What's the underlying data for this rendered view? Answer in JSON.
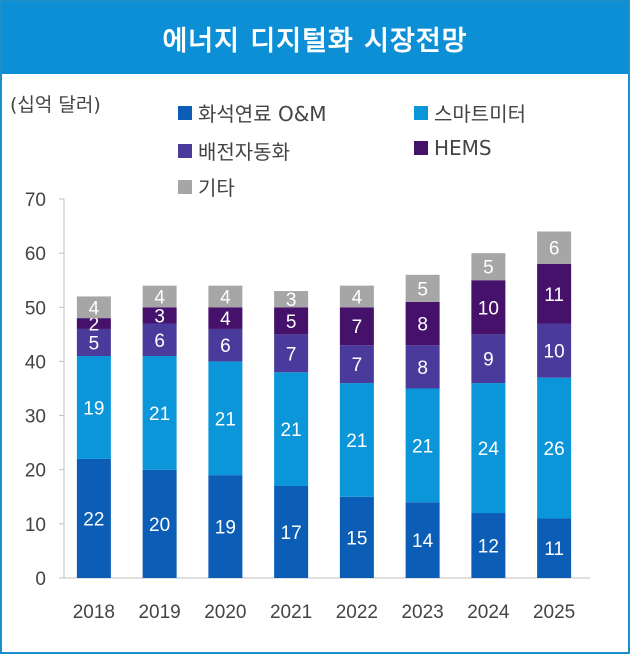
{
  "chart_data": {
    "type": "bar",
    "stacked": true,
    "title": "에너지 디지털화 시장전망",
    "ylabel": "(십억 달러)",
    "ylim": [
      0,
      70
    ],
    "yticks": [
      0,
      10,
      20,
      30,
      40,
      50,
      60,
      70
    ],
    "grid": false,
    "legend_placement": "top",
    "categories": [
      "2018",
      "2019",
      "2020",
      "2021",
      "2022",
      "2023",
      "2024",
      "2025"
    ],
    "series": [
      {
        "name": "화석연료 O&M",
        "color": "#0b5db6",
        "values": [
          22,
          20,
          19,
          17,
          15,
          14,
          12,
          11
        ]
      },
      {
        "name": "스마트미터",
        "color": "#0b96d9",
        "values": [
          19,
          21,
          21,
          21,
          21,
          21,
          24,
          26
        ]
      },
      {
        "name": "배전자동화",
        "color": "#4a3a9b",
        "values": [
          5,
          6,
          6,
          7,
          7,
          8,
          9,
          10
        ]
      },
      {
        "name": "HEMS",
        "color": "#45116a",
        "values": [
          2,
          3,
          4,
          5,
          7,
          8,
          10,
          11
        ]
      },
      {
        "name": "기타",
        "color": "#a6a6a6",
        "values": [
          4,
          4,
          4,
          3,
          4,
          5,
          5,
          6
        ]
      }
    ]
  }
}
